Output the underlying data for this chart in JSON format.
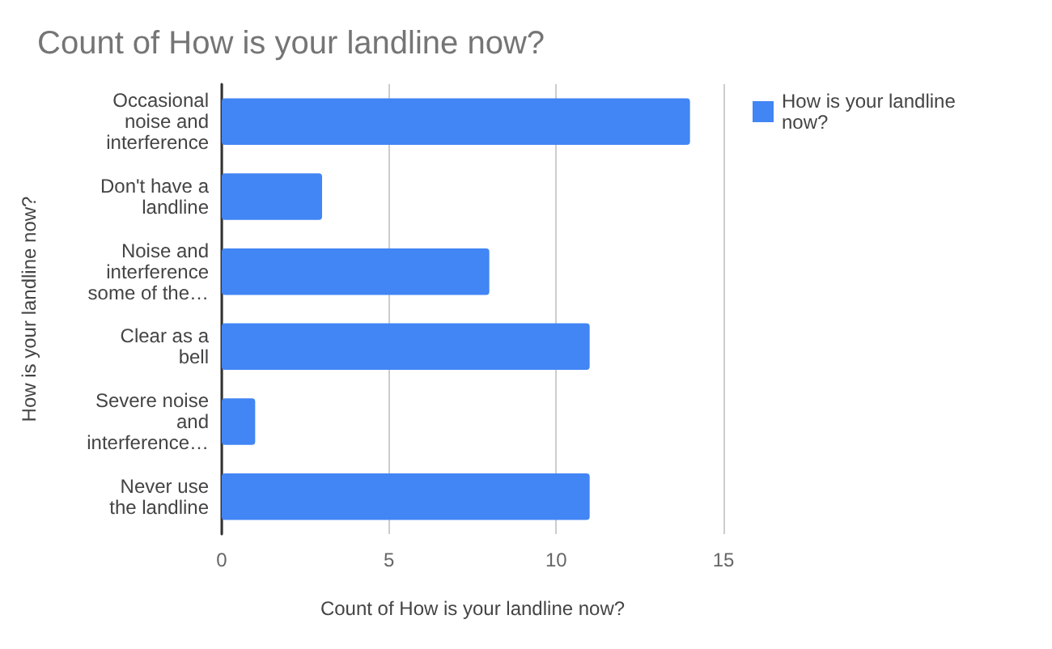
{
  "chart_data": {
    "type": "bar",
    "orientation": "horizontal",
    "title": "Count of How is your landline now?",
    "xlabel": "Count of How is your landline now?",
    "ylabel": "How is your landline now?",
    "categories": [
      "Occasional noise and interference",
      "Don't have a landline",
      "Noise and interference some of the…",
      "Clear as a bell",
      "Severe noise and interference…",
      "Never use the landline"
    ],
    "series": [
      {
        "name": "How is your landline now?",
        "color": "#4285f4",
        "values": [
          14,
          3,
          8,
          11,
          1,
          11
        ]
      }
    ],
    "xlim": [
      0,
      15
    ],
    "xticks": [
      0,
      5,
      10,
      15
    ],
    "grid": "x",
    "legend": "top right"
  }
}
